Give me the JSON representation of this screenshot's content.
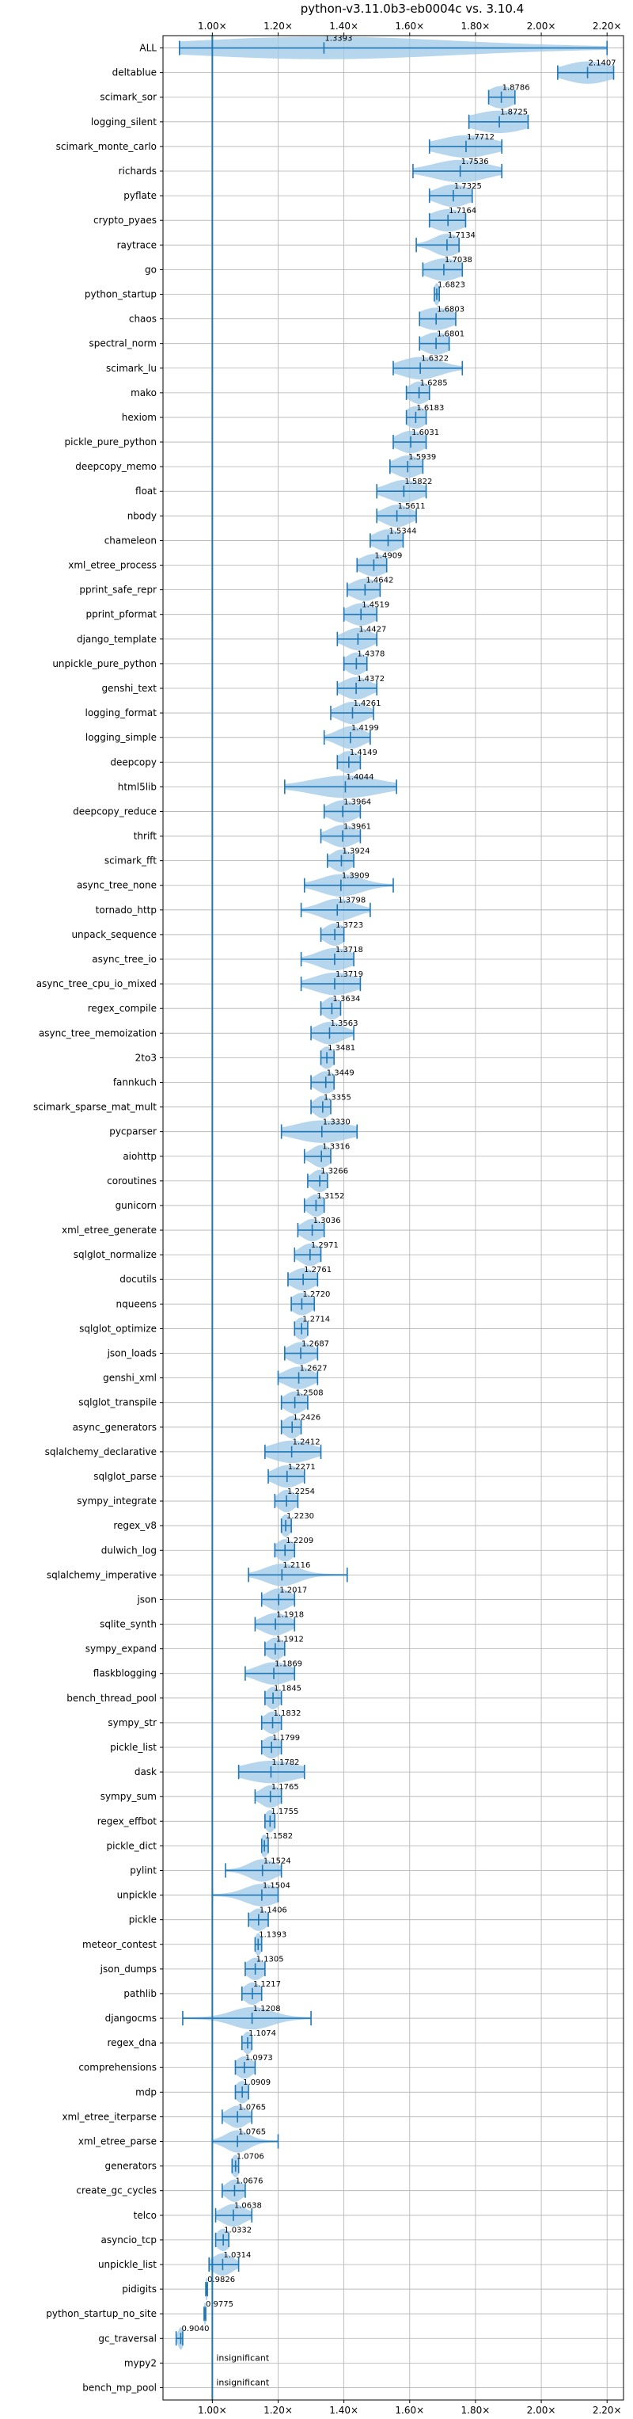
{
  "chart_data": {
    "type": "violin",
    "title": "python-v3.11.0b3-eb0004c vs. 3.10.4",
    "xlim": [
      0.85,
      2.25
    ],
    "x_ticks": [
      1.0,
      1.2,
      1.4,
      1.6,
      1.8,
      2.0,
      2.2
    ],
    "x_tick_labels": [
      "1.00×",
      "1.20×",
      "1.40×",
      "1.60×",
      "1.80×",
      "2.00×",
      "2.20×"
    ],
    "grid": true,
    "reference_line": 1.0,
    "colors": {
      "violin": "#9ec8e8",
      "line": "#1f77b4",
      "grid": "#b0b0b0",
      "text": "#000000"
    },
    "insignificant_label": "insignificant",
    "benchmarks": [
      {
        "name": "ALL",
        "median": 1.3393,
        "label": "1.3393",
        "min": 0.9,
        "max": 2.2,
        "spread": 0.4
      },
      {
        "name": "deltablue",
        "median": 2.1407,
        "label": "2.1407",
        "min": 2.05,
        "max": 2.22,
        "spread": 0.07
      },
      {
        "name": "scimark_sor",
        "median": 1.8786,
        "label": "1.8786",
        "min": 1.84,
        "max": 1.92,
        "spread": 0.04
      },
      {
        "name": "logging_silent",
        "median": 1.8725,
        "label": "1.8725",
        "min": 1.78,
        "max": 1.96,
        "spread": 0.08
      },
      {
        "name": "scimark_monte_carlo",
        "median": 1.7712,
        "label": "1.7712",
        "min": 1.66,
        "max": 1.88,
        "spread": 0.08
      },
      {
        "name": "richards",
        "median": 1.7536,
        "label": "1.7536",
        "min": 1.61,
        "max": 1.88,
        "spread": 0.08
      },
      {
        "name": "pyflate",
        "median": 1.7325,
        "label": "1.7325",
        "min": 1.66,
        "max": 1.79,
        "spread": 0.05
      },
      {
        "name": "crypto_pyaes",
        "median": 1.7164,
        "label": "1.7164",
        "min": 1.66,
        "max": 1.77,
        "spread": 0.05
      },
      {
        "name": "raytrace",
        "median": 1.7134,
        "label": "1.7134",
        "min": 1.62,
        "max": 1.75,
        "spread": 0.04
      },
      {
        "name": "go",
        "median": 1.7038,
        "label": "1.7038",
        "min": 1.64,
        "max": 1.76,
        "spread": 0.05
      },
      {
        "name": "python_startup",
        "median": 1.6823,
        "label": "1.6823",
        "min": 1.675,
        "max": 1.69,
        "spread": 0.008
      },
      {
        "name": "chaos",
        "median": 1.6803,
        "label": "1.6803",
        "min": 1.63,
        "max": 1.74,
        "spread": 0.05
      },
      {
        "name": "spectral_norm",
        "median": 1.6801,
        "label": "1.6801",
        "min": 1.63,
        "max": 1.72,
        "spread": 0.04
      },
      {
        "name": "scimark_lu",
        "median": 1.6322,
        "label": "1.6322",
        "min": 1.55,
        "max": 1.76,
        "spread": 0.06
      },
      {
        "name": "mako",
        "median": 1.6285,
        "label": "1.6285",
        "min": 1.59,
        "max": 1.66,
        "spread": 0.03
      },
      {
        "name": "hexiom",
        "median": 1.6183,
        "label": "1.6183",
        "min": 1.59,
        "max": 1.65,
        "spread": 0.03
      },
      {
        "name": "pickle_pure_python",
        "median": 1.6031,
        "label": "1.6031",
        "min": 1.55,
        "max": 1.65,
        "spread": 0.04
      },
      {
        "name": "deepcopy_memo",
        "median": 1.5939,
        "label": "1.5939",
        "min": 1.54,
        "max": 1.64,
        "spread": 0.04
      },
      {
        "name": "float",
        "median": 1.5822,
        "label": "1.5822",
        "min": 1.5,
        "max": 1.65,
        "spread": 0.05
      },
      {
        "name": "nbody",
        "median": 1.5611,
        "label": "1.5611",
        "min": 1.5,
        "max": 1.62,
        "spread": 0.04
      },
      {
        "name": "chameleon",
        "median": 1.5344,
        "label": "1.5344",
        "min": 1.48,
        "max": 1.58,
        "spread": 0.04
      },
      {
        "name": "xml_etree_process",
        "median": 1.4909,
        "label": "1.4909",
        "min": 1.44,
        "max": 1.53,
        "spread": 0.04
      },
      {
        "name": "pprint_safe_repr",
        "median": 1.4642,
        "label": "1.4642",
        "min": 1.41,
        "max": 1.51,
        "spread": 0.04
      },
      {
        "name": "pprint_pformat",
        "median": 1.4519,
        "label": "1.4519",
        "min": 1.4,
        "max": 1.5,
        "spread": 0.04
      },
      {
        "name": "django_template",
        "median": 1.4427,
        "label": "1.4427",
        "min": 1.38,
        "max": 1.5,
        "spread": 0.04
      },
      {
        "name": "unpickle_pure_python",
        "median": 1.4378,
        "label": "1.4378",
        "min": 1.4,
        "max": 1.47,
        "spread": 0.03
      },
      {
        "name": "genshi_text",
        "median": 1.4372,
        "label": "1.4372",
        "min": 1.38,
        "max": 1.5,
        "spread": 0.04
      },
      {
        "name": "logging_format",
        "median": 1.4261,
        "label": "1.4261",
        "min": 1.36,
        "max": 1.49,
        "spread": 0.04
      },
      {
        "name": "logging_simple",
        "median": 1.4199,
        "label": "1.4199",
        "min": 1.34,
        "max": 1.48,
        "spread": 0.04
      },
      {
        "name": "deepcopy",
        "median": 1.4149,
        "label": "1.4149",
        "min": 1.38,
        "max": 1.45,
        "spread": 0.03
      },
      {
        "name": "html5lib",
        "median": 1.4044,
        "label": "1.4044",
        "min": 1.22,
        "max": 1.56,
        "spread": 0.1
      },
      {
        "name": "deepcopy_reduce",
        "median": 1.3964,
        "label": "1.3964",
        "min": 1.34,
        "max": 1.45,
        "spread": 0.04
      },
      {
        "name": "thrift",
        "median": 1.3961,
        "label": "1.3961",
        "min": 1.33,
        "max": 1.45,
        "spread": 0.04
      },
      {
        "name": "scimark_fft",
        "median": 1.3924,
        "label": "1.3924",
        "min": 1.35,
        "max": 1.43,
        "spread": 0.03
      },
      {
        "name": "async_tree_none",
        "median": 1.3909,
        "label": "1.3909",
        "min": 1.28,
        "max": 1.55,
        "spread": 0.06
      },
      {
        "name": "tornado_http",
        "median": 1.3798,
        "label": "1.3798",
        "min": 1.27,
        "max": 1.48,
        "spread": 0.05
      },
      {
        "name": "unpack_sequence",
        "median": 1.3723,
        "label": "1.3723",
        "min": 1.33,
        "max": 1.4,
        "spread": 0.03
      },
      {
        "name": "async_tree_io",
        "median": 1.3718,
        "label": "1.3718",
        "min": 1.27,
        "max": 1.43,
        "spread": 0.05
      },
      {
        "name": "async_tree_cpu_io_mixed",
        "median": 1.3719,
        "label": "1.3719",
        "min": 1.27,
        "max": 1.45,
        "spread": 0.06
      },
      {
        "name": "regex_compile",
        "median": 1.3634,
        "label": "1.3634",
        "min": 1.33,
        "max": 1.39,
        "spread": 0.025
      },
      {
        "name": "async_tree_memoization",
        "median": 1.3563,
        "label": "1.3563",
        "min": 1.3,
        "max": 1.43,
        "spread": 0.04
      },
      {
        "name": "2to3",
        "median": 1.3481,
        "label": "1.3481",
        "min": 1.33,
        "max": 1.37,
        "spread": 0.02
      },
      {
        "name": "fannkuch",
        "median": 1.3449,
        "label": "1.3449",
        "min": 1.3,
        "max": 1.37,
        "spread": 0.03
      },
      {
        "name": "scimark_sparse_mat_mult",
        "median": 1.3355,
        "label": "1.3355",
        "min": 1.3,
        "max": 1.36,
        "spread": 0.025
      },
      {
        "name": "pycparser",
        "median": 1.333,
        "label": "1.3330",
        "min": 1.21,
        "max": 1.44,
        "spread": 0.08
      },
      {
        "name": "aiohttp",
        "median": 1.3316,
        "label": "1.3316",
        "min": 1.28,
        "max": 1.36,
        "spread": 0.03
      },
      {
        "name": "coroutines",
        "median": 1.3266,
        "label": "1.3266",
        "min": 1.29,
        "max": 1.35,
        "spread": 0.025
      },
      {
        "name": "gunicorn",
        "median": 1.3152,
        "label": "1.3152",
        "min": 1.28,
        "max": 1.34,
        "spread": 0.025
      },
      {
        "name": "xml_etree_generate",
        "median": 1.3036,
        "label": "1.3036",
        "min": 1.26,
        "max": 1.34,
        "spread": 0.03
      },
      {
        "name": "sqlglot_normalize",
        "median": 1.2971,
        "label": "1.2971",
        "min": 1.25,
        "max": 1.33,
        "spread": 0.03
      },
      {
        "name": "docutils",
        "median": 1.2761,
        "label": "1.2761",
        "min": 1.23,
        "max": 1.32,
        "spread": 0.035
      },
      {
        "name": "nqueens",
        "median": 1.272,
        "label": "1.2720",
        "min": 1.24,
        "max": 1.31,
        "spread": 0.03
      },
      {
        "name": "sqlglot_optimize",
        "median": 1.2714,
        "label": "1.2714",
        "min": 1.25,
        "max": 1.29,
        "spread": 0.02
      },
      {
        "name": "json_loads",
        "median": 1.2687,
        "label": "1.2687",
        "min": 1.22,
        "max": 1.32,
        "spread": 0.035
      },
      {
        "name": "genshi_xml",
        "median": 1.2627,
        "label": "1.2627",
        "min": 1.2,
        "max": 1.32,
        "spread": 0.04
      },
      {
        "name": "sqlglot_transpile",
        "median": 1.2508,
        "label": "1.2508",
        "min": 1.21,
        "max": 1.29,
        "spread": 0.03
      },
      {
        "name": "async_generators",
        "median": 1.2426,
        "label": "1.2426",
        "min": 1.21,
        "max": 1.27,
        "spread": 0.025
      },
      {
        "name": "sqlalchemy_declarative",
        "median": 1.2412,
        "label": "1.2412",
        "min": 1.16,
        "max": 1.33,
        "spread": 0.06
      },
      {
        "name": "sqlglot_parse",
        "median": 1.2271,
        "label": "1.2271",
        "min": 1.17,
        "max": 1.28,
        "spread": 0.04
      },
      {
        "name": "sympy_integrate",
        "median": 1.2254,
        "label": "1.2254",
        "min": 1.19,
        "max": 1.26,
        "spread": 0.025
      },
      {
        "name": "regex_v8",
        "median": 1.223,
        "label": "1.2230",
        "min": 1.21,
        "max": 1.24,
        "spread": 0.015
      },
      {
        "name": "dulwich_log",
        "median": 1.2209,
        "label": "1.2209",
        "min": 1.19,
        "max": 1.25,
        "spread": 0.025
      },
      {
        "name": "sqlalchemy_imperative",
        "median": 1.2116,
        "label": "1.2116",
        "min": 1.11,
        "max": 1.41,
        "spread": 0.05
      },
      {
        "name": "json",
        "median": 1.2017,
        "label": "1.2017",
        "min": 1.15,
        "max": 1.25,
        "spread": 0.035
      },
      {
        "name": "sqlite_synth",
        "median": 1.1918,
        "label": "1.1918",
        "min": 1.13,
        "max": 1.25,
        "spread": 0.04
      },
      {
        "name": "sympy_expand",
        "median": 1.1912,
        "label": "1.1912",
        "min": 1.16,
        "max": 1.22,
        "spread": 0.025
      },
      {
        "name": "flaskblogging",
        "median": 1.1869,
        "label": "1.1869",
        "min": 1.1,
        "max": 1.25,
        "spread": 0.05
      },
      {
        "name": "bench_thread_pool",
        "median": 1.1845,
        "label": "1.1845",
        "min": 1.16,
        "max": 1.21,
        "spread": 0.02
      },
      {
        "name": "sympy_str",
        "median": 1.1832,
        "label": "1.1832",
        "min": 1.15,
        "max": 1.21,
        "spread": 0.025
      },
      {
        "name": "pickle_list",
        "median": 1.1799,
        "label": "1.1799",
        "min": 1.15,
        "max": 1.21,
        "spread": 0.025
      },
      {
        "name": "dask",
        "median": 1.1782,
        "label": "1.1782",
        "min": 1.08,
        "max": 1.28,
        "spread": 0.08
      },
      {
        "name": "sympy_sum",
        "median": 1.1765,
        "label": "1.1765",
        "min": 1.13,
        "max": 1.21,
        "spread": 0.03
      },
      {
        "name": "regex_effbot",
        "median": 1.1755,
        "label": "1.1755",
        "min": 1.16,
        "max": 1.19,
        "spread": 0.015
      },
      {
        "name": "pickle_dict",
        "median": 1.1582,
        "label": "1.1582",
        "min": 1.15,
        "max": 1.17,
        "spread": 0.012
      },
      {
        "name": "pylint",
        "median": 1.1524,
        "label": "1.1524",
        "min": 1.04,
        "max": 1.21,
        "spread": 0.04
      },
      {
        "name": "unpickle",
        "median": 1.1504,
        "label": "1.1504",
        "min": 1.0,
        "max": 1.2,
        "spread": 0.05
      },
      {
        "name": "pickle",
        "median": 1.1406,
        "label": "1.1406",
        "min": 1.11,
        "max": 1.17,
        "spread": 0.025
      },
      {
        "name": "meteor_contest",
        "median": 1.1393,
        "label": "1.1393",
        "min": 1.13,
        "max": 1.15,
        "spread": 0.01
      },
      {
        "name": "json_dumps",
        "median": 1.1305,
        "label": "1.1305",
        "min": 1.1,
        "max": 1.16,
        "spread": 0.025
      },
      {
        "name": "pathlib",
        "median": 1.1217,
        "label": "1.1217",
        "min": 1.09,
        "max": 1.15,
        "spread": 0.025
      },
      {
        "name": "djangocms",
        "median": 1.1208,
        "label": "1.1208",
        "min": 0.91,
        "max": 1.3,
        "spread": 0.06
      },
      {
        "name": "regex_dna",
        "median": 1.1074,
        "label": "1.1074",
        "min": 1.09,
        "max": 1.12,
        "spread": 0.015
      },
      {
        "name": "comprehensions",
        "median": 1.0973,
        "label": "1.0973",
        "min": 1.07,
        "max": 1.13,
        "spread": 0.025
      },
      {
        "name": "mdp",
        "median": 1.0909,
        "label": "1.0909",
        "min": 1.07,
        "max": 1.11,
        "spread": 0.02
      },
      {
        "name": "xml_etree_iterparse",
        "median": 1.0765,
        "label": "1.0765",
        "min": 1.03,
        "max": 1.12,
        "spread": 0.03
      },
      {
        "name": "xml_etree_parse",
        "median": 1.0765,
        "label": "1.0765",
        "min": 1.0,
        "max": 1.2,
        "spread": 0.035
      },
      {
        "name": "generators",
        "median": 1.0706,
        "label": "1.0706",
        "min": 1.06,
        "max": 1.08,
        "spread": 0.012
      },
      {
        "name": "create_gc_cycles",
        "median": 1.0676,
        "label": "1.0676",
        "min": 1.03,
        "max": 1.1,
        "spread": 0.025
      },
      {
        "name": "telco",
        "median": 1.0638,
        "label": "1.0638",
        "min": 1.01,
        "max": 1.12,
        "spread": 0.035
      },
      {
        "name": "asyncio_tcp",
        "median": 1.0332,
        "label": "1.0332",
        "min": 1.01,
        "max": 1.05,
        "spread": 0.02
      },
      {
        "name": "unpickle_list",
        "median": 1.0314,
        "label": "1.0314",
        "min": 0.99,
        "max": 1.08,
        "spread": 0.03
      },
      {
        "name": "pidigits",
        "median": 0.9826,
        "label": "0.9826",
        "min": 0.98,
        "max": 0.985,
        "spread": 0.005
      },
      {
        "name": "python_startup_no_site",
        "median": 0.9775,
        "label": "0.9775",
        "min": 0.975,
        "max": 0.98,
        "spread": 0.004
      },
      {
        "name": "gc_traversal",
        "median": 0.904,
        "label": "0.9040",
        "min": 0.89,
        "max": 0.91,
        "spread": 0.008
      },
      {
        "name": "mypy2",
        "median": null,
        "label": "insignificant"
      },
      {
        "name": "bench_mp_pool",
        "median": null,
        "label": "insignificant"
      }
    ]
  }
}
